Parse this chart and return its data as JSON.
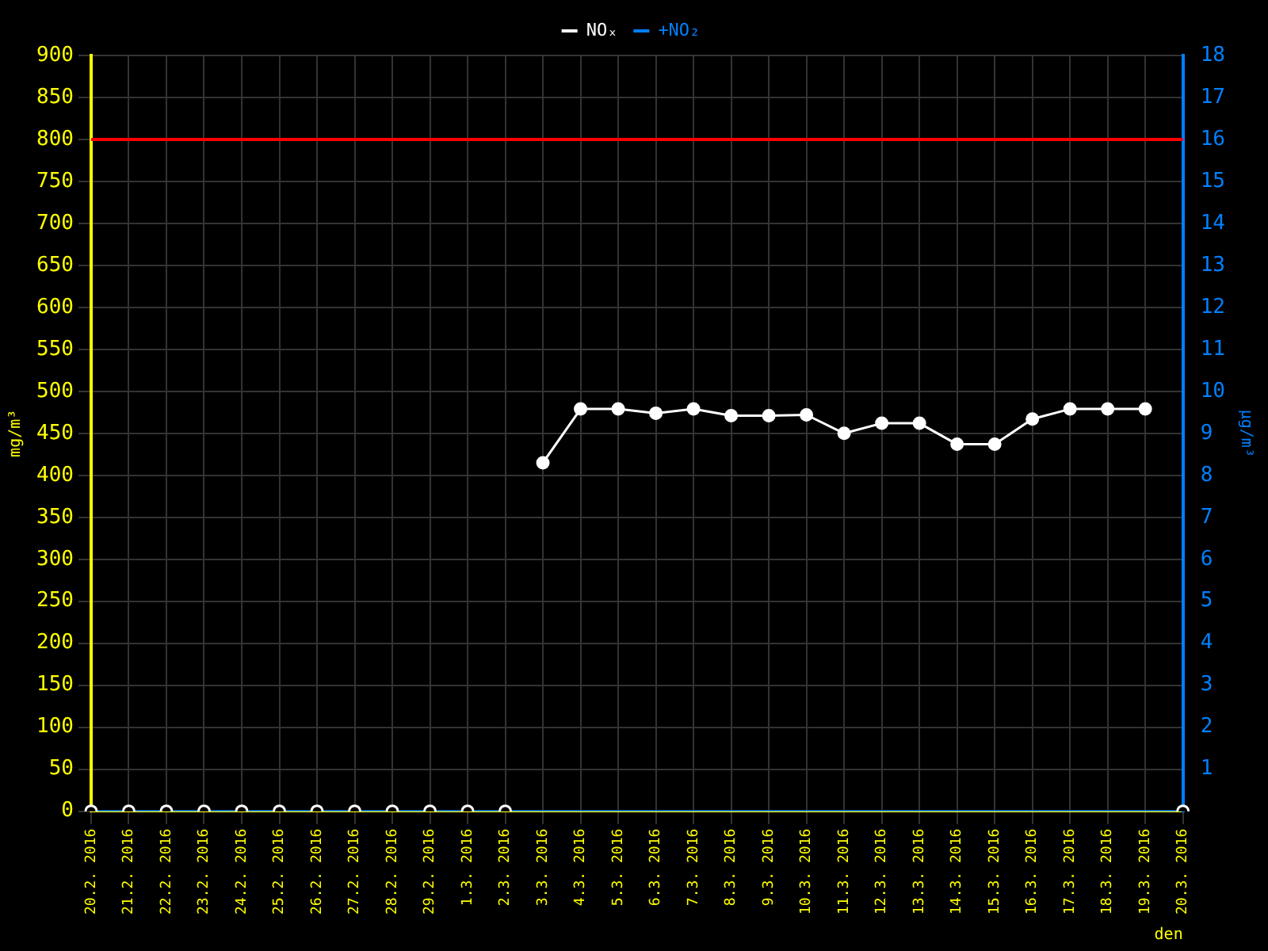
{
  "chart_data": {
    "type": "line",
    "xlabel": "den",
    "ylabel": "mg/m³",
    "y2label": "µg/m³",
    "categories": [
      "20.2. 2016",
      "21.2. 2016",
      "22.2. 2016",
      "23.2. 2016",
      "24.2. 2016",
      "25.2. 2016",
      "26.2. 2016",
      "27.2. 2016",
      "28.2. 2016",
      "29.2. 2016",
      "1.3. 2016",
      "2.3. 2016",
      "3.3. 2016",
      "4.3. 2016",
      "5.3. 2016",
      "6.3. 2016",
      "7.3. 2016",
      "8.3. 2016",
      "9.3. 2016",
      "10.3. 2016",
      "11.3. 2016",
      "12.3. 2016",
      "13.3. 2016",
      "14.3. 2016",
      "15.3. 2016",
      "16.3. 2016",
      "17.3. 2016",
      "18.3. 2016",
      "19.3. 2016",
      "20.3. 2016"
    ],
    "series": [
      {
        "name": "NOₓ",
        "color": "#ffffff",
        "marker": "circle",
        "values": [
          null,
          null,
          null,
          null,
          null,
          null,
          null,
          null,
          null,
          null,
          null,
          null,
          415,
          479,
          479,
          474,
          479,
          471,
          471,
          472,
          450,
          462,
          462,
          437,
          437,
          467,
          479,
          479,
          479,
          null
        ]
      },
      {
        "type": "scatter",
        "color": "#ffffff",
        "marker": "circle",
        "values": [
          0,
          0,
          0,
          0,
          0,
          0,
          0,
          0,
          0,
          0,
          0,
          0,
          null,
          null,
          null,
          null,
          null,
          null,
          null,
          null,
          null,
          null,
          null,
          null,
          null,
          null,
          null,
          null,
          null,
          0
        ]
      },
      {
        "name": "+NO₂",
        "color": "#0080ff",
        "axis": "y2",
        "marker": "none",
        "values": [
          0,
          0,
          0,
          0,
          0,
          0,
          0,
          0,
          0,
          0,
          0,
          0,
          0,
          0,
          0,
          0,
          0,
          0,
          0,
          0,
          0,
          0,
          0,
          0,
          0,
          0,
          0,
          0,
          0,
          0
        ]
      }
    ],
    "ylim": [
      0,
      900
    ],
    "yticks": [
      0,
      50,
      100,
      150,
      200,
      250,
      300,
      350,
      400,
      450,
      500,
      550,
      600,
      650,
      700,
      750,
      800,
      850,
      900
    ],
    "y2lim": [
      0,
      18
    ],
    "y2ticks": [
      1,
      2,
      3,
      4,
      5,
      6,
      7,
      8,
      9,
      10,
      11,
      12,
      13,
      14,
      15,
      16,
      17,
      18
    ],
    "ref_lines": [
      {
        "axis": "y",
        "value": 800,
        "color": "#ff0000"
      }
    ],
    "grid": true,
    "legend": "top"
  }
}
